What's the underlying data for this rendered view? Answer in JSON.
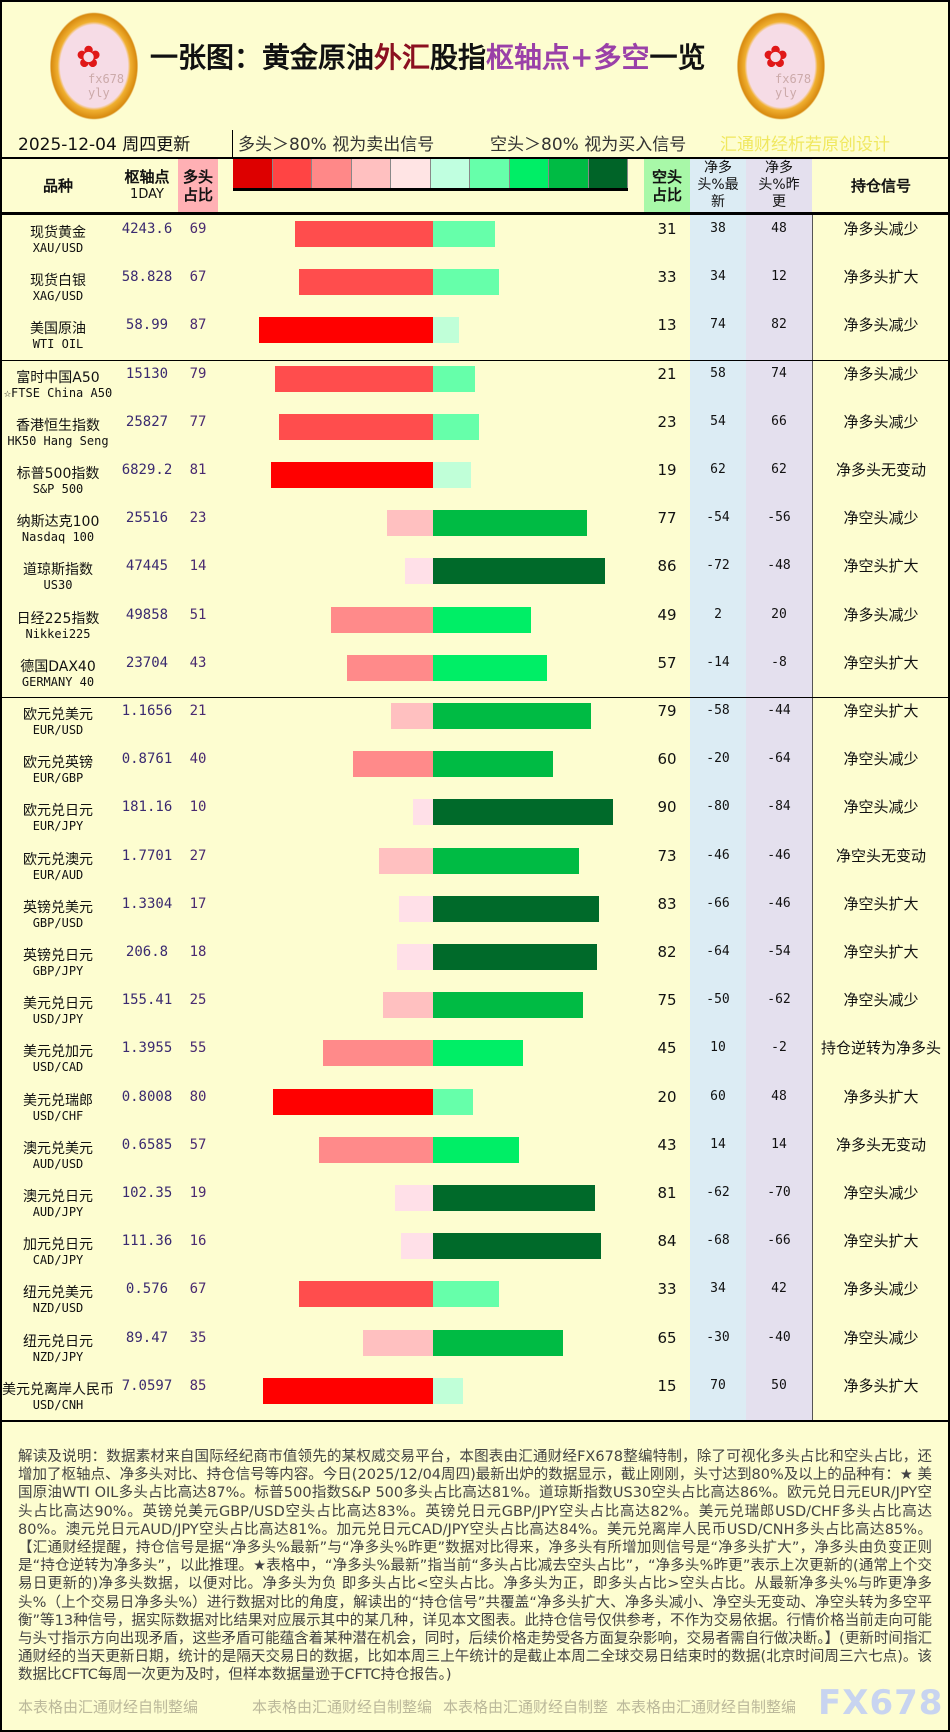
{
  "header": {
    "title_parts": [
      "一张图：黄金原油",
      "外汇",
      "股指",
      "枢轴点+多空",
      "一览"
    ],
    "date": "2025-12-04 周四更新",
    "long_note": "多头＞80% 视为卖出信号",
    "short_note": "空头＞80% 视为买入信号",
    "credit": "汇通财经析若原创设计",
    "logo_text": "fx678 yly"
  },
  "columns": {
    "name": "品种",
    "pivot": "枢轴点",
    "pivot_sub": "1DAY",
    "long": "多头占比",
    "short": "空头占比",
    "net_latest": "净多头%最新",
    "net_prev": "净多头%昨更",
    "signal": "持仓信号"
  },
  "legend_colors": [
    "#dd0000",
    "#ff4444",
    "#ff8888",
    "#ffc0c0",
    "#ffe4e4",
    "#c0ffe0",
    "#66ffaa",
    "#00ee66",
    "#00bb44",
    "#006428"
  ],
  "colors": {
    "long_header": "#ffb0b4",
    "short_header": "#a8f8a8",
    "net_latest_bg": "#dcecf4",
    "net_prev_bg": "#e4e0ee",
    "background": "#fdfdd0"
  },
  "rows": [
    {
      "name": "现货黄金",
      "code": "XAU/USD",
      "pivot": "4243.6",
      "long": 69,
      "short": 31,
      "net_latest": "38",
      "net_prev": "48",
      "signal": "净多头减少"
    },
    {
      "name": "现货白银",
      "code": "XAG/USD",
      "pivot": "58.828",
      "long": 67,
      "short": 33,
      "net_latest": "34",
      "net_prev": "12",
      "signal": "净多头扩大"
    },
    {
      "name": "美国原油",
      "code": "WTI OIL",
      "pivot": "58.99",
      "long": 87,
      "short": 13,
      "net_latest": "74",
      "net_prev": "82",
      "signal": "净多头减少"
    },
    {
      "name": "富时中国A50",
      "code": "☆FTSE China A50",
      "pivot": "15130",
      "long": 79,
      "short": 21,
      "net_latest": "58",
      "net_prev": "74",
      "signal": "净多头减少"
    },
    {
      "name": "香港恒生指数",
      "code": "HK50 Hang Seng",
      "pivot": "25827",
      "long": 77,
      "short": 23,
      "net_latest": "54",
      "net_prev": "66",
      "signal": "净多头减少"
    },
    {
      "name": "标普500指数",
      "code": "S&P 500",
      "pivot": "6829.2",
      "long": 81,
      "short": 19,
      "net_latest": "62",
      "net_prev": "62",
      "signal": "净多头无变动"
    },
    {
      "name": "纳斯达克100",
      "code": "Nasdaq 100",
      "pivot": "25516",
      "long": 23,
      "short": 77,
      "net_latest": "-54",
      "net_prev": "-56",
      "signal": "净空头减少"
    },
    {
      "name": "道琼斯指数",
      "code": "US30",
      "pivot": "47445",
      "long": 14,
      "short": 86,
      "net_latest": "-72",
      "net_prev": "-48",
      "signal": "净空头扩大"
    },
    {
      "name": "日经225指数",
      "code": "Nikkei225",
      "pivot": "49858",
      "long": 51,
      "short": 49,
      "net_latest": "2",
      "net_prev": "20",
      "signal": "净多头减少"
    },
    {
      "name": "德国DAX40",
      "code": "GERMANY 40",
      "pivot": "23704",
      "long": 43,
      "short": 57,
      "net_latest": "-14",
      "net_prev": "-8",
      "signal": "净空头扩大"
    },
    {
      "name": "欧元兑美元",
      "code": "EUR/USD",
      "pivot": "1.1656",
      "long": 21,
      "short": 79,
      "net_latest": "-58",
      "net_prev": "-44",
      "signal": "净空头扩大"
    },
    {
      "name": "欧元兑英镑",
      "code": "EUR/GBP",
      "pivot": "0.8761",
      "long": 40,
      "short": 60,
      "net_latest": "-20",
      "net_prev": "-64",
      "signal": "净空头减少"
    },
    {
      "name": "欧元兑日元",
      "code": "EUR/JPY",
      "pivot": "181.16",
      "long": 10,
      "short": 90,
      "net_latest": "-80",
      "net_prev": "-84",
      "signal": "净空头减少"
    },
    {
      "name": "欧元兑澳元",
      "code": "EUR/AUD",
      "pivot": "1.7701",
      "long": 27,
      "short": 73,
      "net_latest": "-46",
      "net_prev": "-46",
      "signal": "净空头无变动"
    },
    {
      "name": "英镑兑美元",
      "code": "GBP/USD",
      "pivot": "1.3304",
      "long": 17,
      "short": 83,
      "net_latest": "-66",
      "net_prev": "-46",
      "signal": "净空头扩大"
    },
    {
      "name": "英镑兑日元",
      "code": "GBP/JPY",
      "pivot": "206.8",
      "long": 18,
      "short": 82,
      "net_latest": "-64",
      "net_prev": "-54",
      "signal": "净空头扩大"
    },
    {
      "name": "美元兑日元",
      "code": "USD/JPY",
      "pivot": "155.41",
      "long": 25,
      "short": 75,
      "net_latest": "-50",
      "net_prev": "-62",
      "signal": "净空头减少"
    },
    {
      "name": "美元兑加元",
      "code": "USD/CAD",
      "pivot": "1.3955",
      "long": 55,
      "short": 45,
      "net_latest": "10",
      "net_prev": "-2",
      "signal": "持仓逆转为净多头"
    },
    {
      "name": "美元兑瑞郎",
      "code": "USD/CHF",
      "pivot": "0.8008",
      "long": 80,
      "short": 20,
      "net_latest": "60",
      "net_prev": "48",
      "signal": "净多头扩大"
    },
    {
      "name": "澳元兑美元",
      "code": "AUD/USD",
      "pivot": "0.6585",
      "long": 57,
      "short": 43,
      "net_latest": "14",
      "net_prev": "14",
      "signal": "净多头无变动"
    },
    {
      "name": "澳元兑日元",
      "code": "AUD/JPY",
      "pivot": "102.35",
      "long": 19,
      "short": 81,
      "net_latest": "-62",
      "net_prev": "-70",
      "signal": "净空头减少"
    },
    {
      "name": "加元兑日元",
      "code": "CAD/JPY",
      "pivot": "111.36",
      "long": 16,
      "short": 84,
      "net_latest": "-68",
      "net_prev": "-66",
      "signal": "净空头扩大"
    },
    {
      "name": "纽元兑美元",
      "code": "NZD/USD",
      "pivot": "0.576",
      "long": 67,
      "short": 33,
      "net_latest": "34",
      "net_prev": "42",
      "signal": "净多头减少"
    },
    {
      "name": "纽元兑日元",
      "code": "NZD/JPY",
      "pivot": "89.47",
      "long": 35,
      "short": 65,
      "net_latest": "-30",
      "net_prev": "-40",
      "signal": "净空头减少"
    },
    {
      "name": "美元兑离岸人民币",
      "code": "USD/CNH",
      "pivot": "7.0597",
      "long": 85,
      "short": 15,
      "net_latest": "70",
      "net_prev": "50",
      "signal": "净多头扩大"
    }
  ],
  "footer": {
    "text": "解读及说明：数据素材来自国际经纪商市值领先的某权威交易平台，本图表由汇通财经FX678整编特制，除了可视化多头占比和空头占比，还增加了枢轴点、净多头对比、持仓信号等内容。今日(2025/12/04周四)最新出炉的数据显示，截止刚刚，头寸达到80%及以上的品种有：★ 美国原油WTI OIL多头占比高达87%。标普500指数S&P 500多头占比高达81%。道琼斯指数US30空头占比高达86%。欧元兑日元EUR/JPY空头占比高达90%。英镑兑美元GBP/USD空头占比高达83%。英镑兑日元GBP/JPY空头占比高达82%。美元兑瑞郎USD/CHF多头占比高达80%。澳元兑日元AUD/JPY空头占比高达81%。加元兑日元CAD/JPY空头占比高达84%。美元兑离岸人民币USD/CNH多头占比高达85%。【汇通财经提醒，持仓信号是据“净多头%最新”与“净多头%昨更”数据对比得来，净多头有所增加则信号是“净多头扩大”，净多头由负变正则是“持仓逆转为净多头”，以此推理。★表格中，“净多头%最新”指当前“多头占比减去空头占比”，“净多头%昨更”表示上次更新的(通常上个交易日更新的)净多头数据，以便对比。净多头为负 即多头占比<空头占比。净多头为正，即多头占比>空头占比。从最新净多头%与昨更净多头%（上个交易日净多头%）进行数据对比的角度，解读出的“持仓信号”共覆盖“净多头扩大、净多头减小、净空头无变动、净空头转为多空平衡”等13种信号，据实际数据对比结果对应展示其中的某几种，详见本文图表。此持仓信号仅供参考，不作为交易依据。行情价格当前走向可能与头寸指示方向出现矛盾，这些矛盾可能蕴含着某种潜在机会，同时，后续价格走势受各方面复杂影响，交易者需自行做决断。】(更新时间指汇通财经的当天更新日期，统计的是隔天交易日的数据，比如本周三上午统计的是截止本周二全球交易日结束时的数据(北京时间周三六七点)。该数据比CFTC每周一次更为及时，但样本数据量逊于CFTC持仓报告。)",
    "watermarks": [
      "本表格由汇通财经自制整编",
      "本表格由汇通财经自制整编",
      "本表格由汇通财经自制整",
      "本表格由汇通财经自制整编"
    ],
    "brand": "FX678"
  }
}
